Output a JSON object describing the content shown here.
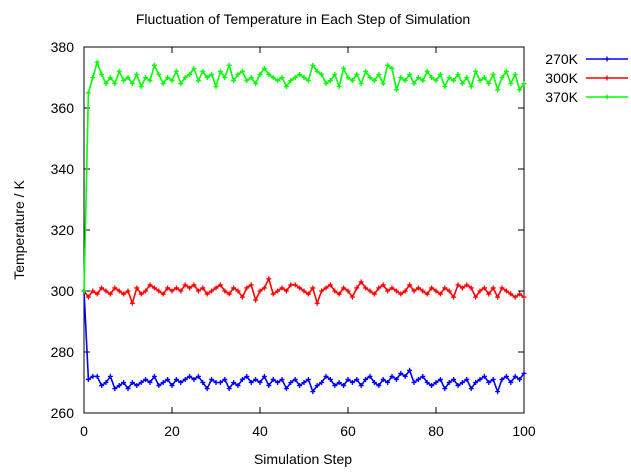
{
  "chart_data": {
    "type": "line",
    "title": "Fluctuation of Temperature in Each Step of Simulation",
    "xlabel": "Simulation Step",
    "ylabel": "Temperature / K",
    "xlim": [
      0,
      100
    ],
    "ylim": [
      260,
      380
    ],
    "xticks": [
      0,
      20,
      40,
      60,
      80,
      100
    ],
    "yticks": [
      260,
      280,
      300,
      320,
      340,
      360,
      380
    ],
    "grid": false,
    "legend_position": "right, outside plot",
    "x": [
      0,
      1,
      2,
      3,
      4,
      5,
      6,
      7,
      8,
      9,
      10,
      11,
      12,
      13,
      14,
      15,
      16,
      17,
      18,
      19,
      20,
      21,
      22,
      23,
      24,
      25,
      26,
      27,
      28,
      29,
      30,
      31,
      32,
      33,
      34,
      35,
      36,
      37,
      38,
      39,
      40,
      41,
      42,
      43,
      44,
      45,
      46,
      47,
      48,
      49,
      50,
      51,
      52,
      53,
      54,
      55,
      56,
      57,
      58,
      59,
      60,
      61,
      62,
      63,
      64,
      65,
      66,
      67,
      68,
      69,
      70,
      71,
      72,
      73,
      74,
      75,
      76,
      77,
      78,
      79,
      80,
      81,
      82,
      83,
      84,
      85,
      86,
      87,
      88,
      89,
      90,
      91,
      92,
      93,
      94,
      95,
      96,
      97,
      98,
      99,
      100
    ],
    "series": [
      {
        "name": "270K",
        "color": "#0000ff",
        "values": [
          300,
          271,
          272,
          272,
          269,
          270,
          272,
          268,
          269,
          270,
          268,
          270,
          269,
          270,
          271,
          270,
          272,
          269,
          270,
          271,
          269,
          271,
          270,
          271,
          272,
          271,
          272,
          270,
          268,
          271,
          270,
          270,
          271,
          268,
          270,
          269,
          271,
          272,
          270,
          271,
          270,
          272,
          269,
          271,
          270,
          271,
          268,
          270,
          271,
          269,
          270,
          271,
          267,
          269,
          270,
          272,
          271,
          269,
          270,
          269,
          271,
          270,
          271,
          269,
          271,
          272,
          270,
          269,
          271,
          270,
          272,
          271,
          273,
          272,
          274,
          270,
          271,
          272,
          270,
          269,
          270,
          271,
          268,
          270,
          271,
          269,
          270,
          271,
          268,
          270,
          271,
          272,
          270,
          271,
          267,
          271,
          272,
          270,
          272,
          271,
          273
        ]
      },
      {
        "name": "300K",
        "color": "#ff0000",
        "values": [
          300,
          298,
          300,
          299,
          301,
          300,
          299,
          301,
          300,
          299,
          300,
          296,
          301,
          299,
          300,
          302,
          301,
          300,
          299,
          301,
          300,
          301,
          300,
          302,
          301,
          302,
          300,
          301,
          299,
          300,
          301,
          302,
          300,
          299,
          301,
          300,
          298,
          301,
          302,
          297,
          300,
          301,
          304,
          299,
          300,
          301,
          300,
          302,
          302,
          301,
          300,
          299,
          301,
          296,
          300,
          301,
          302,
          300,
          299,
          301,
          300,
          298,
          301,
          303,
          301,
          300,
          299,
          301,
          302,
          300,
          301,
          300,
          299,
          300,
          302,
          300,
          301,
          300,
          299,
          301,
          300,
          299,
          301,
          300,
          298,
          302,
          301,
          302,
          301,
          298,
          300,
          301,
          299,
          301,
          298,
          301,
          300,
          299,
          298,
          299,
          298
        ]
      },
      {
        "name": "370K",
        "color": "#00ff00",
        "values": [
          300,
          365,
          370,
          375,
          371,
          368,
          370,
          368,
          372,
          369,
          370,
          368,
          371,
          367,
          370,
          369,
          374,
          371,
          368,
          370,
          369,
          372,
          368,
          370,
          371,
          373,
          369,
          372,
          370,
          371,
          367,
          372,
          370,
          374,
          369,
          371,
          372,
          369,
          370,
          368,
          371,
          373,
          371,
          370,
          369,
          370,
          367,
          369,
          370,
          371,
          370,
          369,
          374,
          372,
          371,
          368,
          369,
          371,
          367,
          373,
          370,
          369,
          371,
          368,
          372,
          370,
          369,
          371,
          368,
          374,
          373,
          366,
          370,
          369,
          371,
          368,
          370,
          369,
          372,
          370,
          369,
          371,
          367,
          370,
          369,
          371,
          368,
          370,
          367,
          372,
          369,
          370,
          368,
          371,
          366,
          370,
          372,
          368,
          371,
          366,
          368
        ]
      }
    ]
  }
}
